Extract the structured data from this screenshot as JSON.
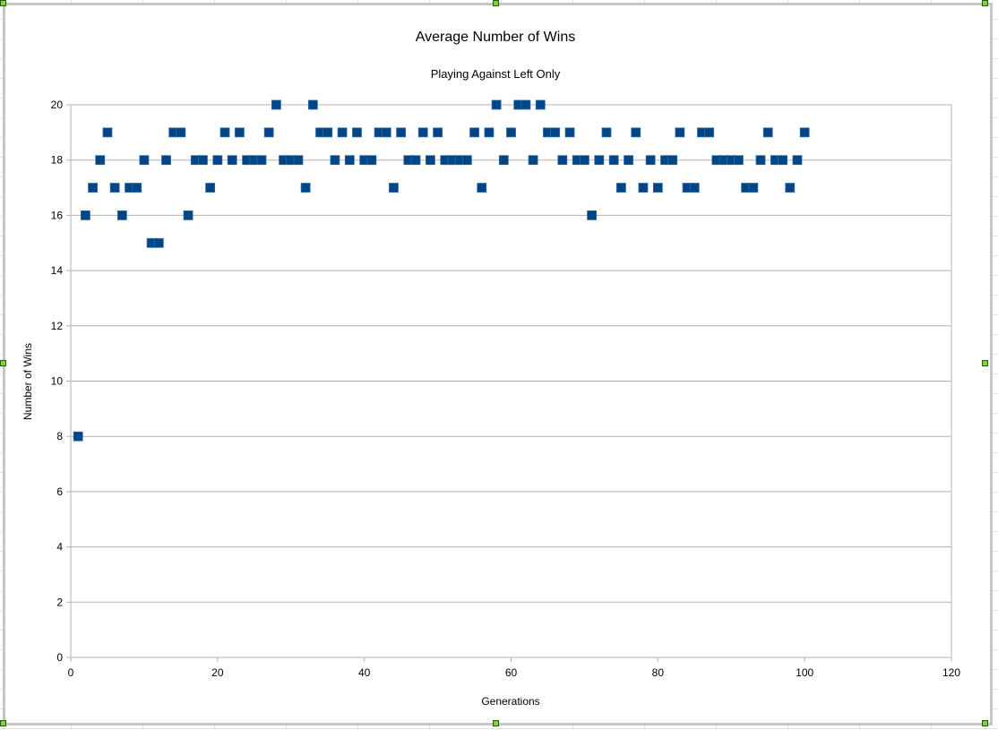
{
  "chart_data": {
    "type": "scatter",
    "title": "Average Number of Wins",
    "subtitle": "Playing Against Left Only",
    "xlabel": "Generations",
    "ylabel": "Number of Wins",
    "xlim": [
      0,
      120
    ],
    "ylim": [
      0,
      20
    ],
    "xticks": [
      0,
      20,
      40,
      60,
      80,
      100,
      120
    ],
    "yticks": [
      0,
      2,
      4,
      6,
      8,
      10,
      12,
      14,
      16,
      18,
      20
    ],
    "grid": "horizontal",
    "legend": "none",
    "marker_color": "#004586",
    "x": [
      1,
      2,
      3,
      4,
      5,
      6,
      7,
      8,
      9,
      10,
      11,
      12,
      13,
      14,
      15,
      16,
      17,
      18,
      19,
      20,
      21,
      22,
      23,
      24,
      25,
      26,
      27,
      28,
      29,
      30,
      31,
      32,
      33,
      34,
      35,
      36,
      37,
      38,
      39,
      40,
      41,
      42,
      43,
      44,
      45,
      46,
      47,
      48,
      49,
      50,
      51,
      52,
      53,
      54,
      55,
      56,
      57,
      58,
      59,
      60,
      61,
      62,
      63,
      64,
      65,
      66,
      67,
      68,
      69,
      70,
      71,
      72,
      73,
      74,
      75,
      76,
      77,
      78,
      79,
      80,
      81,
      82,
      83,
      84,
      85,
      86,
      87,
      88,
      89,
      90,
      91,
      92,
      93,
      94,
      95,
      96,
      97,
      98,
      99,
      100
    ],
    "y": [
      8,
      16,
      17,
      18,
      19,
      17,
      16,
      17,
      17,
      18,
      15,
      15,
      18,
      19,
      19,
      16,
      18,
      18,
      17,
      18,
      19,
      18,
      19,
      18,
      18,
      18,
      19,
      20,
      18,
      18,
      18,
      17,
      20,
      19,
      19,
      18,
      19,
      18,
      19,
      18,
      18,
      19,
      19,
      17,
      19,
      18,
      18,
      19,
      18,
      19,
      18,
      18,
      18,
      18,
      19,
      17,
      19,
      20,
      18,
      19,
      20,
      20,
      18,
      20,
      19,
      19,
      18,
      19,
      18,
      18,
      16,
      18,
      19,
      18,
      17,
      18,
      19,
      17,
      18,
      17,
      18,
      18,
      19,
      17,
      17,
      19,
      19,
      18,
      18,
      18,
      18,
      17,
      17,
      18,
      19,
      18,
      18,
      17,
      18,
      19
    ]
  }
}
